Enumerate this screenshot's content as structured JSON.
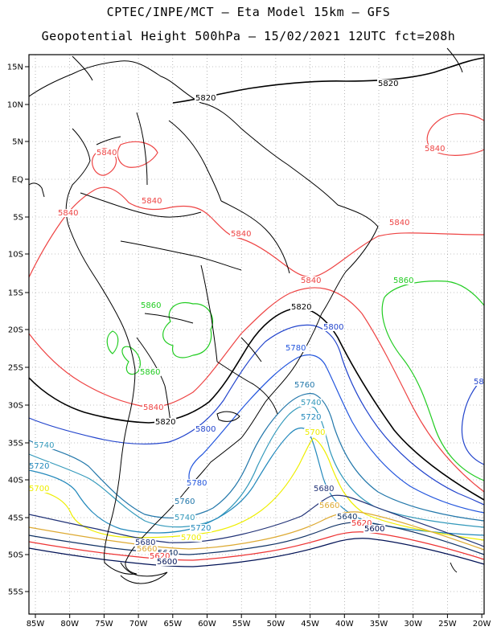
{
  "title_line1": "CPTEC/INPE/MCT –  Eta Model 15km – GFS",
  "title_line2": "Geopotential Height 500hPa – 15/02/2021 12UTC fct=208h",
  "lat_ticks": [
    "15N",
    "10N",
    "5N",
    "EQ",
    "5S",
    "10S",
    "15S",
    "20S",
    "25S",
    "30S",
    "35S",
    "40S",
    "45S",
    "50S",
    "55S"
  ],
  "lon_ticks": [
    "85W",
    "80W",
    "75W",
    "70W",
    "65W",
    "60W",
    "55W",
    "50W",
    "45W",
    "40W",
    "35W",
    "30W",
    "25W",
    "20W"
  ],
  "colors": {
    "5860": "#22cc22",
    "5840": "#ee4444",
    "5820": "#000000",
    "5800": "#2244cc",
    "5780": "#2255dd",
    "5760": "#2277aa",
    "5740": "#3399bb",
    "5720": "#2288bb",
    "5700": "#eeee00",
    "5680": "#223377",
    "5660": "#ddaa33",
    "5640": "#113366",
    "5620": "#ee3333",
    "5600": "#001155",
    "land": "#000000",
    "grid": "#888888"
  },
  "contour_labels": [
    {
      "text": "5820",
      "c": "5820"
    },
    {
      "text": "5820",
      "c": "5820"
    },
    {
      "text": "5840",
      "c": "5840"
    },
    {
      "text": "5840",
      "c": "5840"
    },
    {
      "text": "5840",
      "c": "5840"
    },
    {
      "text": "5840",
      "c": "5840"
    },
    {
      "text": "5840",
      "c": "5840"
    },
    {
      "text": "5840",
      "c": "5840"
    },
    {
      "text": "5840",
      "c": "5840"
    },
    {
      "text": "5860",
      "c": "5860"
    },
    {
      "text": "5820",
      "c": "5820"
    },
    {
      "text": "5800",
      "c": "5800"
    },
    {
      "text": "5780",
      "c": "5780"
    },
    {
      "text": "5860",
      "c": "5860"
    },
    {
      "text": "5860",
      "c": "5860"
    },
    {
      "text": "58",
      "c": "5800"
    },
    {
      "text": "5760",
      "c": "5760"
    },
    {
      "text": "5740",
      "c": "5740"
    },
    {
      "text": "5720",
      "c": "5720"
    },
    {
      "text": "5700",
      "c": "5700"
    },
    {
      "text": "5840",
      "c": "5840"
    },
    {
      "text": "5820",
      "c": "5820"
    },
    {
      "text": "5800",
      "c": "5800"
    },
    {
      "text": "5740",
      "c": "5740"
    },
    {
      "text": "5720",
      "c": "5720"
    },
    {
      "text": "5700",
      "c": "5700"
    },
    {
      "text": "5780",
      "c": "5780"
    },
    {
      "text": "5760",
      "c": "5760"
    },
    {
      "text": "5740",
      "c": "5740"
    },
    {
      "text": "5720",
      "c": "5720"
    },
    {
      "text": "5700",
      "c": "5700"
    },
    {
      "text": "5680",
      "c": "5680"
    },
    {
      "text": "5660",
      "c": "5660"
    },
    {
      "text": "5640",
      "c": "5640"
    },
    {
      "text": "5620",
      "c": "5620"
    },
    {
      "text": "5600",
      "c": "5600"
    },
    {
      "text": "5680",
      "c": "5680"
    },
    {
      "text": "5660",
      "c": "5660"
    },
    {
      "text": "5640",
      "c": "5640"
    },
    {
      "text": "5620",
      "c": "5620"
    },
    {
      "text": "5600",
      "c": "5600"
    }
  ]
}
